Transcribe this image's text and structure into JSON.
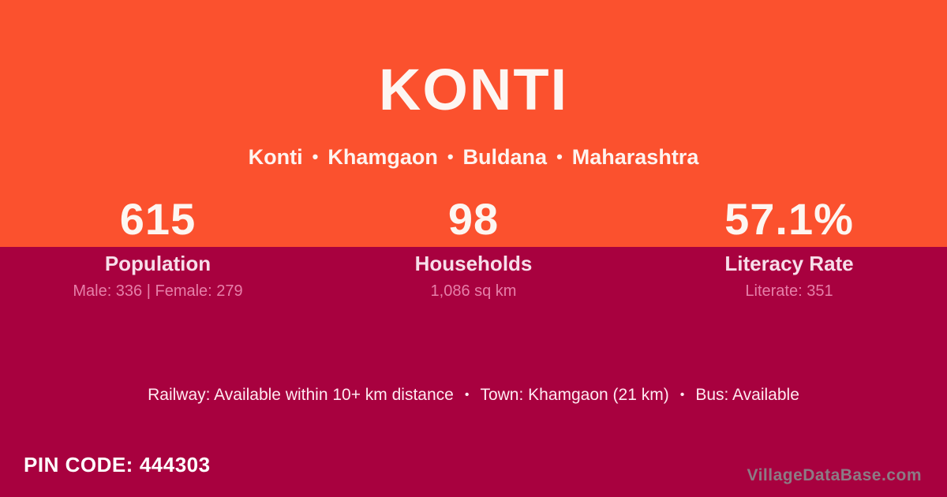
{
  "colors": {
    "top_background": "#FB512E",
    "bottom_background": "#A8013F",
    "title_text": "#FDF6F2",
    "stat_value_text": "#FDF6F1",
    "stat_label_text": "#F7DEEA",
    "stat_detail_text": "#E67FA9",
    "transport_text": "#FFEAF2",
    "pin_text": "#FFFFFF",
    "watermark_text": "#8C7B84"
  },
  "header": {
    "title": "KONTI",
    "breadcrumb": {
      "items": [
        "Konti",
        "Khamgaon",
        "Buldana",
        "Maharashtra"
      ],
      "separator": "•"
    }
  },
  "stats": [
    {
      "value": "615",
      "label": "Population",
      "detail": "Male: 336 | Female: 279"
    },
    {
      "value": "98",
      "label": "Households",
      "detail": "1,086 sq km"
    },
    {
      "value": "57.1%",
      "label": "Literacy Rate",
      "detail": "Literate: 351"
    }
  ],
  "transport": {
    "items": [
      "Railway: Available within 10+ km distance",
      "Town: Khamgaon (21 km)",
      "Bus: Available"
    ],
    "separator": "•"
  },
  "pin": {
    "label": "PIN CODE:",
    "value": "444303"
  },
  "watermark": "VillageDataBase.com"
}
